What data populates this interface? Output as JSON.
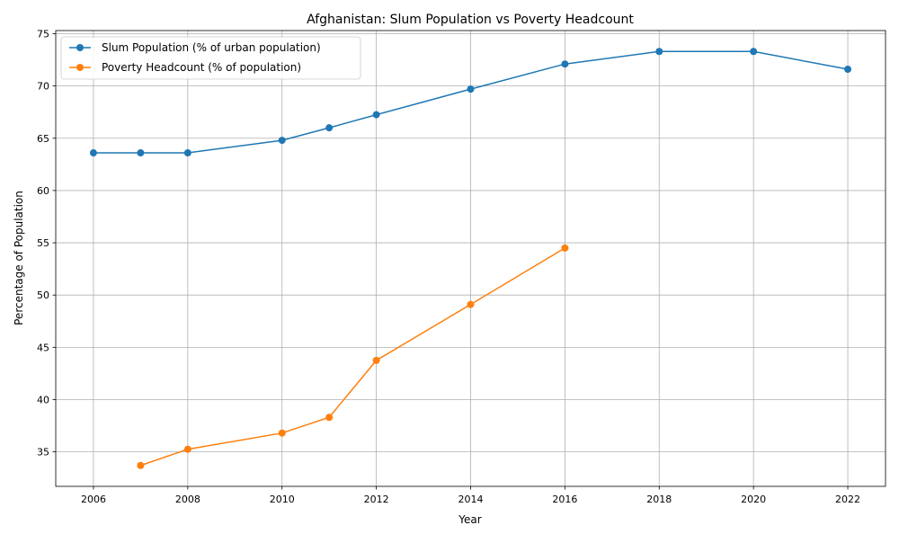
{
  "chart_data": {
    "type": "line",
    "title": "Afghanistan: Slum Population vs Poverty Headcount",
    "xlabel": "Year",
    "ylabel": "Percentage of Population",
    "xlim": [
      2005.2,
      2022.8
    ],
    "ylim": [
      31.7,
      75.3
    ],
    "xticks": [
      2006,
      2008,
      2010,
      2012,
      2014,
      2016,
      2018,
      2020,
      2022
    ],
    "yticks": [
      35,
      40,
      45,
      50,
      55,
      60,
      65,
      70,
      75
    ],
    "grid": true,
    "legend_position": "top-left",
    "series": [
      {
        "name": "Slum Population (% of urban population)",
        "color": "#1f77b4",
        "points": [
          [
            2006,
            63.6
          ],
          [
            2007,
            63.6
          ],
          [
            2008,
            63.6
          ],
          [
            2010,
            64.8
          ],
          [
            2011,
            66.0
          ],
          [
            2012,
            67.25
          ],
          [
            2014,
            69.7
          ],
          [
            2016,
            72.1
          ],
          [
            2018,
            73.3
          ],
          [
            2020,
            73.3
          ],
          [
            2022,
            71.6
          ]
        ]
      },
      {
        "name": "Poverty Headcount (% of population)",
        "color": "#ff7f0e",
        "points": [
          [
            2007,
            33.7
          ],
          [
            2008,
            35.25
          ],
          [
            2010,
            36.8
          ],
          [
            2011,
            38.3
          ],
          [
            2012,
            43.75
          ],
          [
            2014,
            49.1
          ],
          [
            2016,
            54.5
          ]
        ]
      }
    ]
  }
}
